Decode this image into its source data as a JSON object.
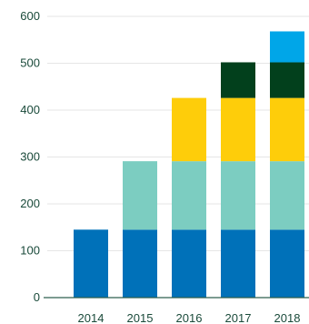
{
  "chart_data": {
    "type": "bar",
    "stacked": true,
    "categories": [
      "2014",
      "2015",
      "2016",
      "2017",
      "2018"
    ],
    "series": [
      {
        "values": [
          145,
          145,
          145,
          145,
          145
        ],
        "color": "#0071b9"
      },
      {
        "values": [
          0,
          146,
          146,
          146,
          146
        ],
        "color": "#7ccdc1"
      },
      {
        "values": [
          0,
          0,
          135,
          135,
          135
        ],
        "color": "#fecd0a"
      },
      {
        "values": [
          0,
          0,
          0,
          76,
          76
        ],
        "color": "#02401c"
      },
      {
        "values": [
          0,
          0,
          0,
          0,
          66
        ],
        "color": "#00a6e8"
      }
    ],
    "yticks": [
      0,
      100,
      200,
      300,
      400,
      500,
      600
    ],
    "ylim": [
      0,
      600
    ],
    "grid": true,
    "legend": "none"
  }
}
